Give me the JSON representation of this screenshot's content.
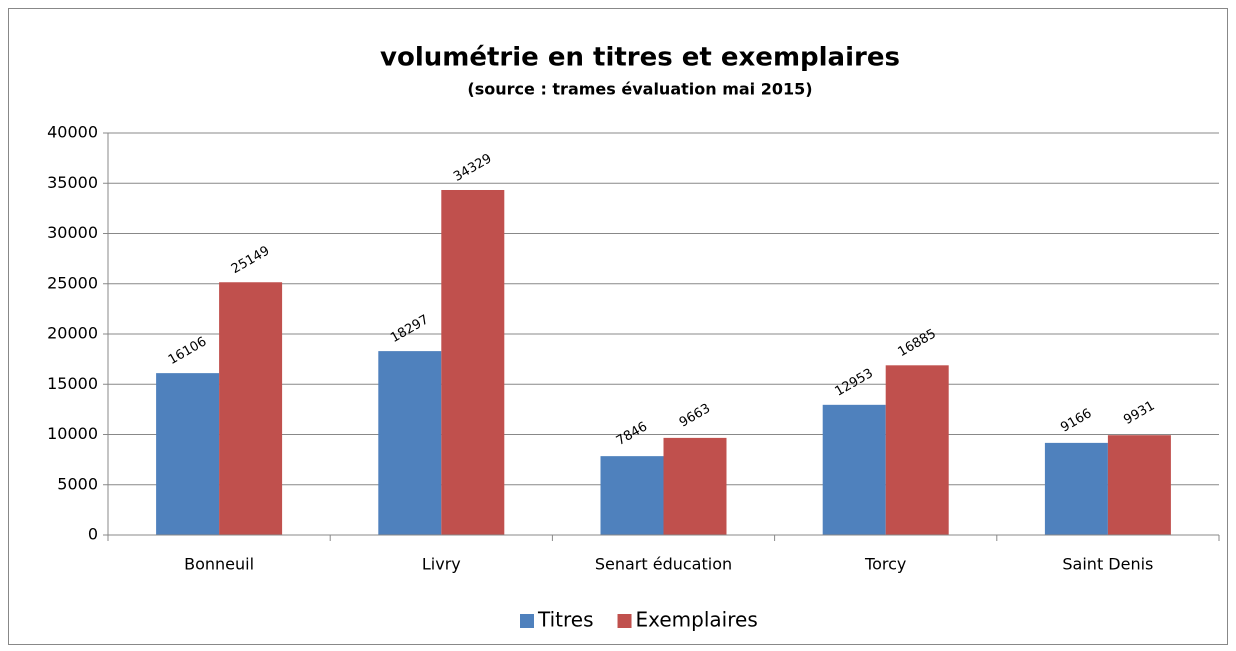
{
  "chart_data": {
    "type": "bar",
    "title": "volumétrie en titres et exemplaires",
    "subtitle": "(source : trames évaluation mai 2015)",
    "categories": [
      "Bonneuil",
      "Livry",
      "Senart éducation",
      "Torcy",
      "Saint Denis"
    ],
    "series": [
      {
        "name": "Titres",
        "color": "#4f81bd",
        "values": [
          16106,
          18297,
          7846,
          12953,
          9166
        ]
      },
      {
        "name": "Exemplaires",
        "color": "#c0504d",
        "values": [
          25149,
          34329,
          9663,
          16885,
          9931
        ]
      }
    ],
    "ylim": [
      0,
      40000
    ],
    "yticks": [
      0,
      5000,
      10000,
      15000,
      20000,
      25000,
      30000,
      35000,
      40000
    ],
    "grid": true,
    "legend": "bottom"
  }
}
